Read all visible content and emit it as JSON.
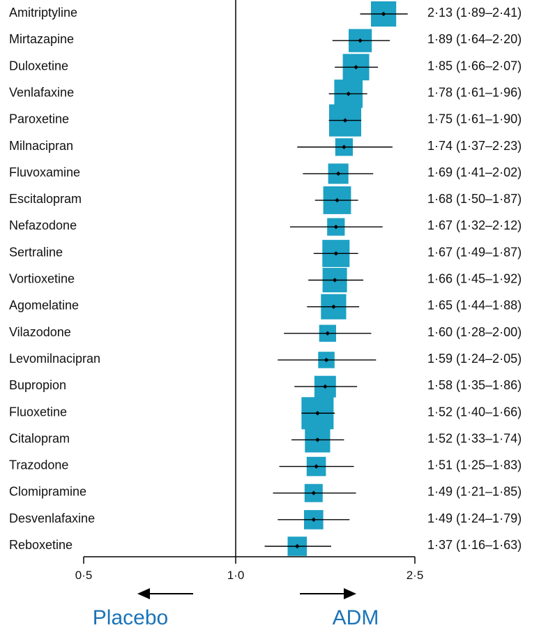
{
  "chart_data": {
    "type": "forest",
    "title": "",
    "xlabel": "",
    "ylabel": "",
    "scale": "log",
    "null_value": 1.0,
    "xlim": [
      0.5,
      2.5
    ],
    "x_ticks": [
      0.5,
      1.0,
      2.5
    ],
    "x_tick_labels": [
      "0·5",
      "1·0",
      "2·5"
    ],
    "direction_labels": {
      "left": "Placebo",
      "right": "ADM"
    },
    "colors": {
      "box": "#1da1c4",
      "line": "#000000",
      "direction_text": "#1a73b8"
    },
    "rows": [
      {
        "label": "Amitriptyline",
        "estimate": 2.13,
        "lower": 1.89,
        "upper": 2.41,
        "weight": 0.62,
        "ci_text": "2·13 (1·89–2·41)"
      },
      {
        "label": "Mirtazapine",
        "estimate": 1.89,
        "lower": 1.64,
        "upper": 2.2,
        "weight": 0.52,
        "ci_text": "1·89 (1·64–2·20)"
      },
      {
        "label": "Duloxetine",
        "estimate": 1.85,
        "lower": 1.66,
        "upper": 2.07,
        "weight": 0.68,
        "ci_text": "1·85 (1·66–2·07)"
      },
      {
        "label": "Venlafaxine",
        "estimate": 1.78,
        "lower": 1.61,
        "upper": 1.96,
        "weight": 0.78,
        "ci_text": "1·78 (1·61–1·96)"
      },
      {
        "label": "Paroxetine",
        "estimate": 1.75,
        "lower": 1.61,
        "upper": 1.9,
        "weight": 1.0,
        "ci_text": "1·75 (1·61–1·90)"
      },
      {
        "label": "Milnacipran",
        "estimate": 1.74,
        "lower": 1.37,
        "upper": 2.23,
        "weight": 0.3,
        "ci_text": "1·74 (1·37–2·23)"
      },
      {
        "label": "Fluvoxamine",
        "estimate": 1.69,
        "lower": 1.41,
        "upper": 2.02,
        "weight": 0.4,
        "ci_text": "1·69 (1·41–2·02)"
      },
      {
        "label": "Escitalopram",
        "estimate": 1.68,
        "lower": 1.5,
        "upper": 1.87,
        "weight": 0.75,
        "ci_text": "1·68 (1·50–1·87)"
      },
      {
        "label": "Nefazodone",
        "estimate": 1.67,
        "lower": 1.32,
        "upper": 2.12,
        "weight": 0.3,
        "ci_text": "1·67 (1·32–2·12)"
      },
      {
        "label": "Sertraline",
        "estimate": 1.67,
        "lower": 1.49,
        "upper": 1.87,
        "weight": 0.72,
        "ci_text": "1·67 (1·49–1·87)"
      },
      {
        "label": "Vortioxetine",
        "estimate": 1.66,
        "lower": 1.45,
        "upper": 1.92,
        "weight": 0.58,
        "ci_text": "1·66 (1·45–1·92)"
      },
      {
        "label": "Agomelatine",
        "estimate": 1.65,
        "lower": 1.44,
        "upper": 1.88,
        "weight": 0.62,
        "ci_text": "1·65 (1·44–1·88)"
      },
      {
        "label": "Vilazodone",
        "estimate": 1.6,
        "lower": 1.28,
        "upper": 2.0,
        "weight": 0.28,
        "ci_text": "1·60 (1·28–2·00)"
      },
      {
        "label": "Levomilnacipran",
        "estimate": 1.59,
        "lower": 1.24,
        "upper": 2.05,
        "weight": 0.26,
        "ci_text": "1·59 (1·24–2·05)"
      },
      {
        "label": "Bupropion",
        "estimate": 1.58,
        "lower": 1.35,
        "upper": 1.86,
        "weight": 0.45,
        "ci_text": "1·58 (1·35–1·86)"
      },
      {
        "label": "Fluoxetine",
        "estimate": 1.52,
        "lower": 1.4,
        "upper": 1.66,
        "weight": 1.0,
        "ci_text": "1·52 (1·40–1·66)"
      },
      {
        "label": "Citalopram",
        "estimate": 1.52,
        "lower": 1.33,
        "upper": 1.74,
        "weight": 0.62,
        "ci_text": "1·52 (1·33–1·74)"
      },
      {
        "label": "Trazodone",
        "estimate": 1.51,
        "lower": 1.25,
        "upper": 1.83,
        "weight": 0.36,
        "ci_text": "1·51 (1·25–1·83)"
      },
      {
        "label": "Clomipramine",
        "estimate": 1.49,
        "lower": 1.21,
        "upper": 1.85,
        "weight": 0.32,
        "ci_text": "1·49 (1·21–1·85)"
      },
      {
        "label": "Desvenlafaxine",
        "estimate": 1.49,
        "lower": 1.24,
        "upper": 1.79,
        "weight": 0.36,
        "ci_text": "1·49 (1·24–1·79)"
      },
      {
        "label": "Reboxetine",
        "estimate": 1.37,
        "lower": 1.16,
        "upper": 1.63,
        "weight": 0.36,
        "ci_text": "1·37 (1·16–1·63)"
      }
    ]
  }
}
